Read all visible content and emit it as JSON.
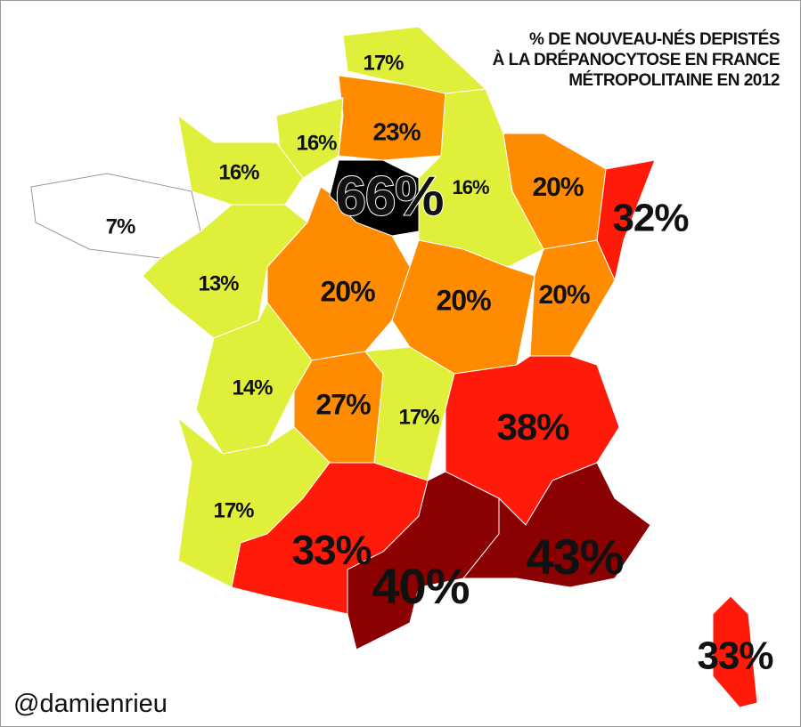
{
  "title": {
    "lines": [
      "% DE NOUVEAU-NÉS DEPISTÉS",
      "À LA DRÉPANOCYTOSE EN FRANCE",
      "MÉTROPOLITAINE EN 2012"
    ]
  },
  "regions": [
    {
      "label": "17%",
      "color": "#e0f03a"
    },
    {
      "label": "23%",
      "color": "#ff8c00"
    },
    {
      "label": "16%",
      "color": "#e0f03a"
    },
    {
      "label": "16%",
      "color": "#e0f03a"
    },
    {
      "label": "7%",
      "color": "#ffffff"
    },
    {
      "label": "13%",
      "color": "#e0f03a"
    },
    {
      "label": "20%",
      "color": "#ff8c00"
    },
    {
      "label": "66%",
      "color": "#000000"
    },
    {
      "label": "16%",
      "color": "#e0f03a"
    },
    {
      "label": "20%",
      "color": "#ff8c00"
    },
    {
      "label": "32%",
      "color": "#ff1a0a"
    },
    {
      "label": "20%",
      "color": "#ff8c00"
    },
    {
      "label": "20%",
      "color": "#ff8c00"
    },
    {
      "label": "14%",
      "color": "#e0f03a"
    },
    {
      "label": "27%",
      "color": "#ff8c00"
    },
    {
      "label": "17%",
      "color": "#e0f03a"
    },
    {
      "label": "38%",
      "color": "#ff1a0a"
    },
    {
      "label": "17%",
      "color": "#e0f03a"
    },
    {
      "label": "33%",
      "color": "#ff1a0a"
    },
    {
      "label": "40%",
      "color": "#8b0000"
    },
    {
      "label": "43%",
      "color": "#8b0000"
    },
    {
      "label": "33%",
      "color": "#ff1a0a"
    }
  ],
  "credit": "@damienrieu"
}
